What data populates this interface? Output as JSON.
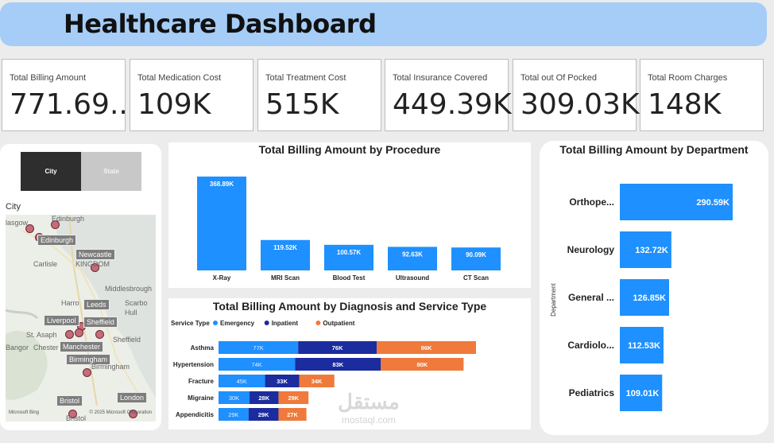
{
  "header": {
    "title": "Healthcare Dashboard"
  },
  "kpis": [
    {
      "label": "Total Billing Amount",
      "value": "771.69..."
    },
    {
      "label": "Total Medication Cost",
      "value": "109K"
    },
    {
      "label": "Total Treatment Cost",
      "value": "515K"
    },
    {
      "label": "Total Insurance Covered",
      "value": "449.39K"
    },
    {
      "label": "Total out Of Pocked",
      "value": "309.03K"
    },
    {
      "label": "Total Room Charges",
      "value": "148K"
    }
  ],
  "slicer": {
    "city_label": "City",
    "state_label": "State"
  },
  "map": {
    "title": "City",
    "places": [
      "lasgow",
      "Edinburgh",
      "Edinburgh",
      "Newcastle",
      "Carlisle",
      "KINGDOM",
      "Middlesbrough",
      "Harro",
      "Leeds",
      "Scarbo",
      "Hull",
      "Liverpool",
      "Sheffield",
      "St. Asaph",
      "Chester",
      "Sheffield",
      "Bangor",
      "Manchester",
      "Birmingham",
      "Birmingham",
      "Bristol",
      "London",
      "Bristol"
    ],
    "credits": [
      "Microsoft Bing",
      "© 2025 Microsoft Corporation"
    ]
  },
  "colors": {
    "bar": "#1e90ff",
    "emergency": "#1e90ff",
    "inpatient": "#1a2c9e",
    "outpatient": "#ef7a3b"
  },
  "watermark": {
    "text": "مستقل",
    "site": "mostaql.com"
  },
  "chart_data": [
    {
      "type": "bar",
      "title": "Total Billing Amount by Procedure",
      "categories": [
        "X-Ray",
        "MRI Scan",
        "Blood Test",
        "Ultrasound",
        "CT Scan"
      ],
      "values": [
        368.89,
        119.52,
        100.57,
        92.63,
        90.09
      ],
      "labels": [
        "368.89K",
        "119.52K",
        "100.57K",
        "92.63K",
        "90.09K"
      ],
      "unit": "K",
      "ylim": [
        0,
        368.89
      ]
    },
    {
      "type": "bar",
      "orientation": "horizontal",
      "stacked": true,
      "title": "Total Billing Amount by Diagnosis and Service Type",
      "legend_title": "Service Type",
      "categories": [
        "Asthma",
        "Hypertension",
        "Fracture",
        "Migraine",
        "Appendicitis"
      ],
      "series": [
        {
          "name": "Emergency",
          "values": [
            77,
            74,
            45,
            30,
            29
          ],
          "labels": [
            "77K",
            "74K",
            "45K",
            "30K",
            "29K"
          ]
        },
        {
          "name": "Inpatient",
          "values": [
            76,
            83,
            33,
            28,
            29
          ],
          "labels": [
            "76K",
            "83K",
            "33K",
            "28K",
            "29K"
          ]
        },
        {
          "name": "Outpatient",
          "values": [
            96,
            80,
            34,
            29,
            27
          ],
          "labels": [
            "96K",
            "80K",
            "34K",
            "29K",
            "27K"
          ]
        }
      ],
      "unit": "K",
      "xlim": [
        0,
        249
      ]
    },
    {
      "type": "bar",
      "orientation": "horizontal",
      "title": "Total Billing Amount by Department",
      "ylabel": "Department",
      "categories": [
        "Orthope...",
        "Neurology",
        "General ...",
        "Cardiolo...",
        "Pediatrics"
      ],
      "values": [
        290.59,
        132.72,
        126.85,
        112.53,
        109.01
      ],
      "labels": [
        "290.59K",
        "132.72K",
        "126.85K",
        "112.53K",
        "109.01K"
      ],
      "unit": "K",
      "xlim": [
        0,
        290.59
      ]
    }
  ]
}
